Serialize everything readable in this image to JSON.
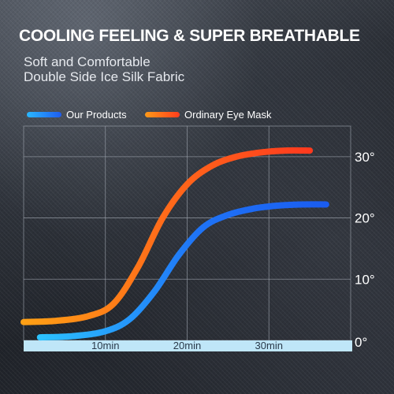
{
  "header": {
    "title": "COOLING FEELING & SUPER BREATHABLE",
    "subtitle_line1": "Soft and Comfortable",
    "subtitle_line2": "Double Side Ice Silk Fabric"
  },
  "colors": {
    "our_products": "#1e6cf2",
    "ordinary": "#ff4a1c",
    "baseline_bar": "#bfe6f8",
    "grid": "#9aa0aa"
  },
  "chart_data": {
    "type": "line",
    "title": "",
    "xlabel": "",
    "ylabel": "",
    "x_ticks": [
      "10min",
      "20min",
      "30min"
    ],
    "y_ticks": [
      "0°",
      "10°",
      "20°",
      "30°"
    ],
    "xlim": [
      0,
      40
    ],
    "ylim": [
      0,
      35
    ],
    "grid": true,
    "legend_position": "top-left",
    "series": [
      {
        "name": "Our Products",
        "color": "blue",
        "x": [
          2,
          6,
          10,
          13,
          16,
          19,
          22,
          25,
          28,
          31,
          34,
          37
        ],
        "y": [
          0.5,
          0.7,
          1.5,
          3.5,
          8,
          14,
          18.5,
          20.5,
          21.5,
          22,
          22.2,
          22.2
        ]
      },
      {
        "name": "Ordinary Eye Mask",
        "color": "orange",
        "x": [
          0,
          4,
          8,
          11,
          14,
          17,
          20,
          23,
          26,
          29,
          32,
          35
        ],
        "y": [
          3,
          3.2,
          4,
          6,
          12,
          20,
          25.5,
          28.5,
          30,
          30.7,
          31,
          31
        ]
      }
    ]
  }
}
